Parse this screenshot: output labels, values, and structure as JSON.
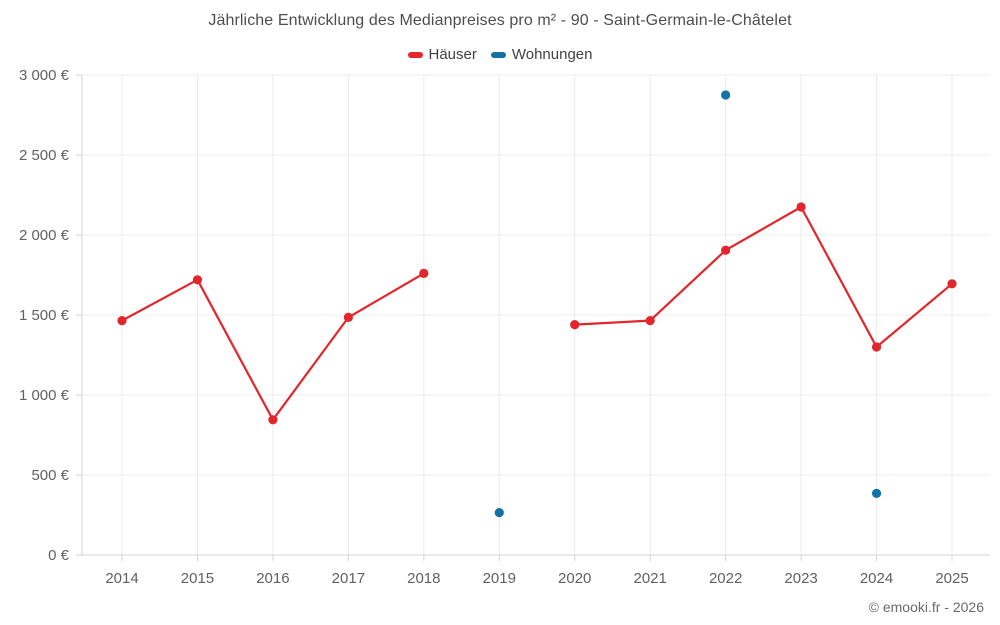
{
  "title": "Jährliche Entwicklung des Medianpreises pro m² - 90 - Saint-Germain-le-Châtelet",
  "footer": "© emooki.fr - 2026",
  "legend": [
    {
      "label": "Häuser",
      "color": "#e2262c"
    },
    {
      "label": "Wohnungen",
      "color": "#1272a8"
    }
  ],
  "colors": {
    "haeuser_red": "#e2262c",
    "wohnungen_blue": "#1272a8",
    "gridline": "#ececec",
    "axis_line": "#d4d4d4",
    "tick_label": "#616161",
    "title_text": "#4e4e4e"
  },
  "chart_data": {
    "type": "line",
    "title": "Jährliche Entwicklung des Medianpreises pro m² - 90 - Saint-Germain-le-Châtelet",
    "xlabel": "",
    "ylabel": "",
    "x": [
      "2014",
      "2015",
      "2016",
      "2017",
      "2018",
      "2019",
      "2020",
      "2021",
      "2022",
      "2023",
      "2024",
      "2025"
    ],
    "series": [
      {
        "name": "Häuser",
        "color": "#e2262c",
        "mode": "line+markers",
        "values": [
          1465,
          1720,
          845,
          1485,
          1760,
          null,
          1440,
          1465,
          1905,
          2175,
          1300,
          1695
        ]
      },
      {
        "name": "Wohnungen",
        "color": "#1272a8",
        "mode": "markers",
        "values": [
          null,
          null,
          null,
          null,
          null,
          265,
          null,
          null,
          2875,
          null,
          385,
          null
        ]
      }
    ],
    "ylim": [
      0,
      3000
    ],
    "yticks": [
      0,
      500,
      1000,
      1500,
      2000,
      2500,
      3000
    ],
    "ytick_labels": [
      "0 €",
      "500 €",
      "1 000 €",
      "1 500 €",
      "2 000 €",
      "2 500 €",
      "3 000 €"
    ],
    "grid": true,
    "legend_position": "top",
    "currency": "EUR"
  }
}
